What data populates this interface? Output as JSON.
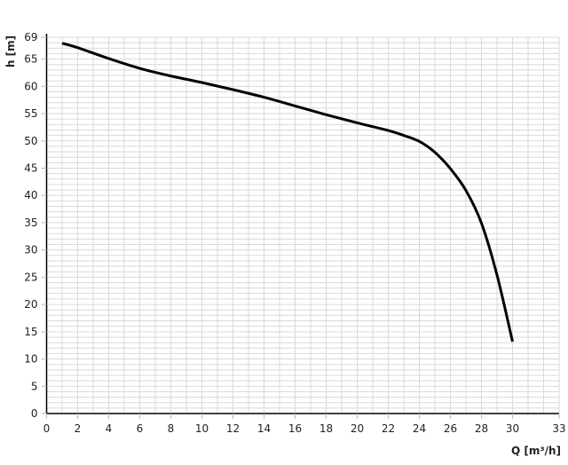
{
  "chart_data": {
    "type": "line",
    "title": "",
    "xlabel": "Q [m³/h]",
    "ylabel": "h [m]",
    "xlim": [
      0,
      33
    ],
    "ylim": [
      0,
      69
    ],
    "x_ticks": [
      0,
      2,
      4,
      6,
      8,
      10,
      12,
      14,
      16,
      18,
      20,
      22,
      24,
      26,
      28,
      30,
      33
    ],
    "y_ticks": [
      0,
      5,
      10,
      15,
      20,
      25,
      30,
      35,
      40,
      45,
      50,
      55,
      60,
      65,
      69
    ],
    "grid": true,
    "grid_minor_step": {
      "x": 1,
      "y": 1
    },
    "colors": {
      "line": "#000000",
      "grid": "#d9d9d9",
      "axis": "#000000"
    },
    "series": [
      {
        "x": [
          1,
          2,
          4,
          6,
          8,
          10,
          12,
          14,
          16,
          18,
          20,
          22,
          23,
          24,
          25,
          26,
          27,
          28,
          29,
          30
        ],
        "y": [
          67.9,
          67.1,
          65.1,
          63.3,
          61.9,
          60.7,
          59.4,
          58.0,
          56.4,
          54.8,
          53.3,
          51.9,
          51.0,
          49.9,
          47.9,
          44.9,
          40.9,
          34.9,
          25.4,
          13.2
        ]
      }
    ]
  }
}
